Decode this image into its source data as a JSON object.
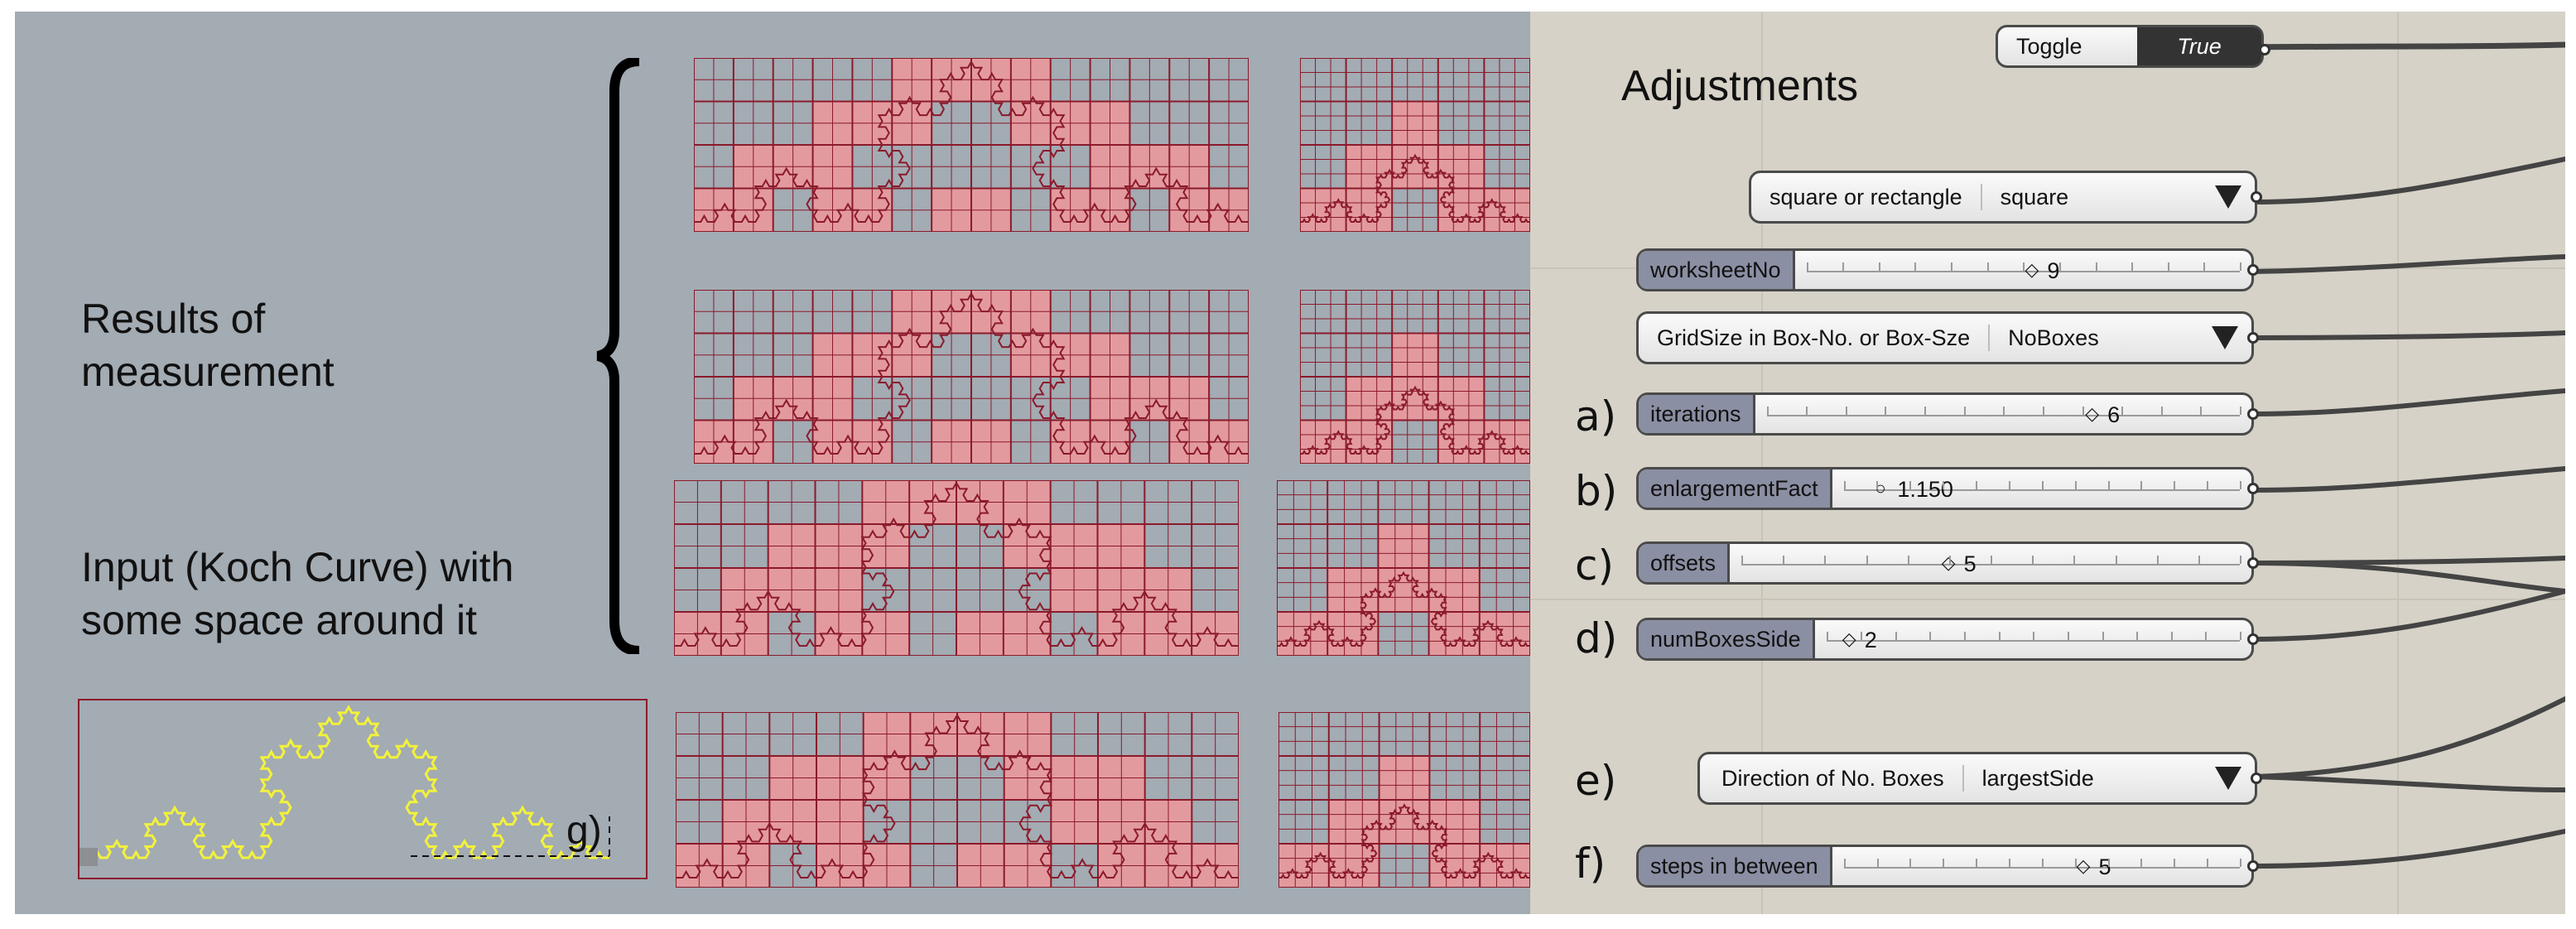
{
  "left_panel": {
    "results_label_line1": "Results of",
    "results_label_line2": "measurement",
    "input_label_line1": "Input (Koch Curve) with",
    "input_label_line2": "some space around it",
    "g_label": "g)",
    "colors": {
      "background": "#a3abb3",
      "grid_line": "#8b1a2b",
      "fill": "#e39a9e",
      "curve": "#f2f23a"
    }
  },
  "right_panel": {
    "title": "Adjustments",
    "toggle": {
      "label": "Toggle",
      "value": "True"
    },
    "shape_dropdown": {
      "label": "square or rectangle",
      "value": "square"
    },
    "worksheet_slider": {
      "name": "worksheetNo",
      "value": "9"
    },
    "gridsize_dropdown": {
      "label": "GridSize in Box-No. or Box-Sze",
      "value": "NoBoxes"
    },
    "iterations_slider": {
      "letter": "a)",
      "name": "iterations",
      "value": "6"
    },
    "enlargement_slider": {
      "letter": "b)",
      "name": "enlargementFact",
      "value": "1.150"
    },
    "offsets_slider": {
      "letter": "c)",
      "name": "offsets",
      "value": "5"
    },
    "numboxes_slider": {
      "letter": "d)",
      "name": "numBoxesSide",
      "value": "2"
    },
    "direction_dropdown": {
      "letter": "e)",
      "label": "Direction of No. Boxes",
      "value": "largestSide"
    },
    "steps_slider": {
      "letter": "f)",
      "name": "steps in between",
      "value": "5"
    },
    "colors": {
      "canvas": "#d6d2c8",
      "slider_name_bg": "#8b8fa3",
      "wire": "#444444"
    }
  }
}
